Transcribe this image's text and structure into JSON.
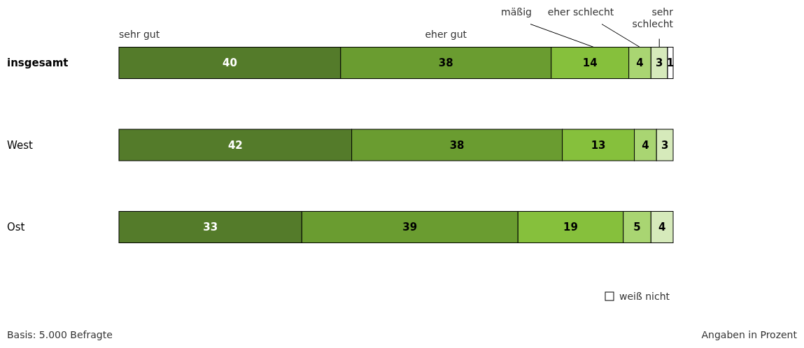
{
  "chart_data": {
    "type": "bar",
    "orientation": "horizontal",
    "stacked": true,
    "data_labels": true,
    "legend": "bottom right",
    "categories": [
      "insgesamt",
      "West",
      "Ost"
    ],
    "series": [
      {
        "name": "sehr gut",
        "color": "#547b2a",
        "values": [
          40,
          42,
          33
        ]
      },
      {
        "name": "eher gut",
        "color": "#6a9c30",
        "values": [
          38,
          38,
          39
        ]
      },
      {
        "name": "mäßig",
        "color": "#86c03c",
        "values": [
          14,
          13,
          19
        ]
      },
      {
        "name": "eher schlecht",
        "color": "#a9d572",
        "values": [
          4,
          4,
          5
        ]
      },
      {
        "name": "sehr schlecht",
        "color": "#d6eabb",
        "values": [
          3,
          3,
          4
        ]
      },
      {
        "name": "weiß nicht",
        "color": "#ffffff",
        "values": [
          1,
          null,
          null
        ]
      }
    ],
    "annotations": [
      "Basis: 5.000 Befragte",
      "Angaben in Prozent"
    ]
  }
}
